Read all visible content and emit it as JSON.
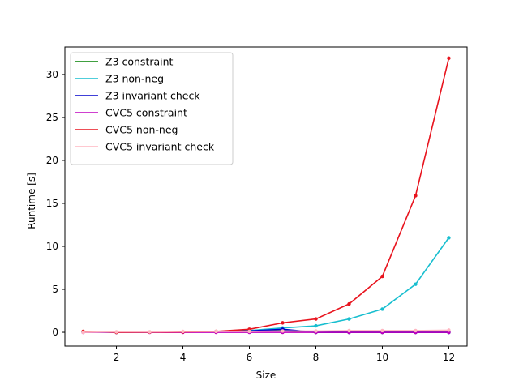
{
  "chart_data": {
    "type": "line",
    "xlabel": "Size",
    "ylabel": "Runtime [s]",
    "xlim": [
      0.45,
      12.55
    ],
    "ylim": [
      -1.6,
      33.2
    ],
    "xticks": [
      2,
      4,
      6,
      8,
      10,
      12
    ],
    "yticks": [
      0,
      5,
      10,
      15,
      20,
      25,
      30
    ],
    "grid": false,
    "legend_position": "top-left",
    "x": [
      1,
      2,
      3,
      4,
      5,
      6,
      7,
      8,
      9,
      10,
      11,
      12
    ],
    "series": [
      {
        "name": "Z3 constraint",
        "color": "#008000",
        "values": [
          0.05,
          0.0,
          0.02,
          0.05,
          0.08,
          0.2,
          0.2,
          0.0,
          0.0,
          0.0,
          0.0,
          0.0
        ]
      },
      {
        "name": "Z3 non-neg",
        "color": "#17becf",
        "values": [
          0.05,
          0.0,
          0.02,
          0.05,
          0.08,
          0.2,
          0.5,
          0.75,
          1.55,
          2.7,
          5.6,
          11.0
        ]
      },
      {
        "name": "Z3 invariant check",
        "color": "#0000cc",
        "values": [
          0.02,
          0.0,
          0.02,
          0.05,
          0.08,
          0.15,
          0.35,
          0.0,
          0.0,
          0.0,
          0.0,
          0.0
        ]
      },
      {
        "name": "CVC5 constraint",
        "color": "#bf00bf",
        "values": [
          0.0,
          0.0,
          0.0,
          0.0,
          0.0,
          0.0,
          0.0,
          0.0,
          0.0,
          0.0,
          0.0,
          0.0
        ]
      },
      {
        "name": "CVC5 non-neg",
        "color": "#e8141e",
        "values": [
          0.1,
          0.0,
          0.02,
          0.05,
          0.1,
          0.35,
          1.1,
          1.55,
          3.3,
          6.5,
          15.9,
          31.9
        ]
      },
      {
        "name": "CVC5 invariant check",
        "color": "#ffb6c1",
        "values": [
          0.0,
          0.05,
          0.05,
          0.1,
          0.1,
          0.1,
          0.15,
          0.15,
          0.2,
          0.2,
          0.2,
          0.25
        ]
      }
    ]
  }
}
